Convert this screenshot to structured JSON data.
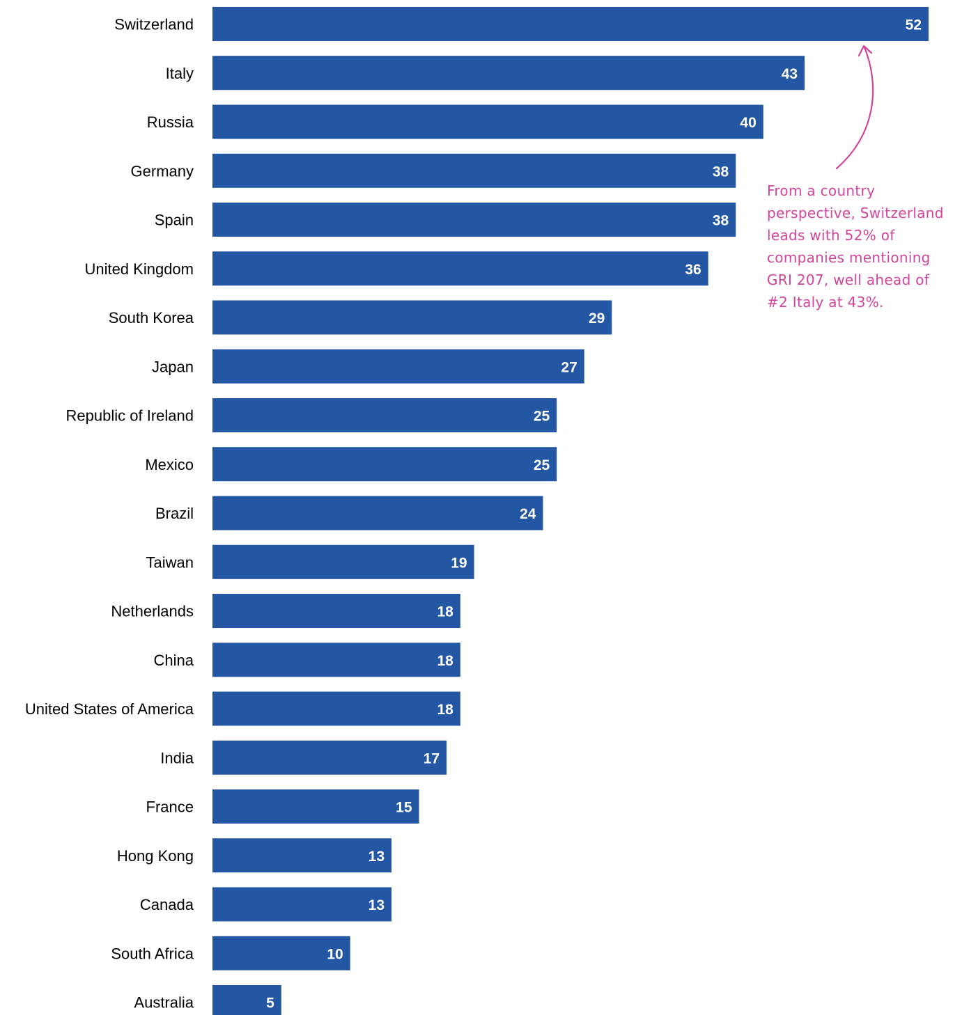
{
  "chart_data": {
    "type": "bar",
    "orientation": "horizontal",
    "categories": [
      "Switzerland",
      "Italy",
      "Russia",
      "Germany",
      "Spain",
      "United Kingdom",
      "South Korea",
      "Japan",
      "Republic of Ireland",
      "Mexico",
      "Brazil",
      "Taiwan",
      "Netherlands",
      "China",
      "United States of America",
      "India",
      "France",
      "Hong Kong",
      "Canada",
      "South Africa",
      "Australia"
    ],
    "values": [
      52,
      43,
      40,
      38,
      38,
      36,
      29,
      27,
      25,
      25,
      24,
      19,
      18,
      18,
      18,
      17,
      15,
      13,
      13,
      10,
      5
    ],
    "title": "",
    "xlabel": "",
    "ylabel": "",
    "xlim": [
      0,
      52
    ],
    "grid": false,
    "legend": "none",
    "data_labels": "inside-end",
    "annotation": {
      "text": "From a country perspective, Switzerland leads with 52% of companies mentioning GRI 207, well ahead of #2 Italy at 43%.",
      "lines": [
        "From a country",
        "perspective, Switzerland",
        "leads with 52% of",
        "companies mentioning",
        "GRI 207, well ahead of",
        "#2 Italy at 43%."
      ],
      "points_to": "Switzerland"
    }
  },
  "colors": {
    "bar": "#2356A3",
    "value_text": "#ffffff",
    "category_text": "#000000",
    "annotation": "#D2449B"
  }
}
